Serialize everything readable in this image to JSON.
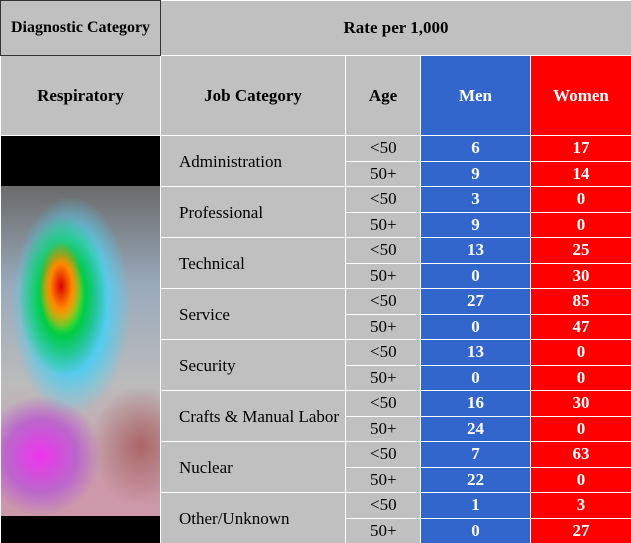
{
  "header": {
    "diagnostic": "Diagnostic Category",
    "rate": "Rate per 1,000",
    "respiratory": "Respiratory",
    "job": "Job Category",
    "age": "Age",
    "men": "Men",
    "women": "Women"
  },
  "groups": [
    {
      "job": "Administration",
      "rows": [
        {
          "age": "<50",
          "men": 6,
          "women": 17
        },
        {
          "age": "50+",
          "men": 9,
          "women": 14
        }
      ]
    },
    {
      "job": "Professional",
      "rows": [
        {
          "age": "<50",
          "men": 3,
          "women": 0
        },
        {
          "age": "50+",
          "men": 9,
          "women": 0
        }
      ]
    },
    {
      "job": "Technical",
      "rows": [
        {
          "age": "<50",
          "men": 13,
          "women": 25
        },
        {
          "age": "50+",
          "men": 0,
          "women": 30
        }
      ]
    },
    {
      "job": "Service",
      "rows": [
        {
          "age": "<50",
          "men": 27,
          "women": 85
        },
        {
          "age": "50+",
          "men": 0,
          "women": 47
        }
      ]
    },
    {
      "job": "Security",
      "rows": [
        {
          "age": "<50",
          "men": 13,
          "women": 0
        },
        {
          "age": "50+",
          "men": 0,
          "women": 0
        }
      ]
    },
    {
      "job": "Crafts & Manual Labor",
      "rows": [
        {
          "age": "<50",
          "men": 16,
          "women": 30
        },
        {
          "age": "50+",
          "men": 24,
          "women": 0
        }
      ]
    },
    {
      "job": "Nuclear",
      "rows": [
        {
          "age": "<50",
          "men": 7,
          "women": 63
        },
        {
          "age": "50+",
          "men": 22,
          "women": 0
        }
      ]
    },
    {
      "job": "Other/Unknown",
      "rows": [
        {
          "age": "<50",
          "men": 1,
          "women": 3
        },
        {
          "age": "50+",
          "men": 0,
          "women": 27
        }
      ]
    }
  ]
}
